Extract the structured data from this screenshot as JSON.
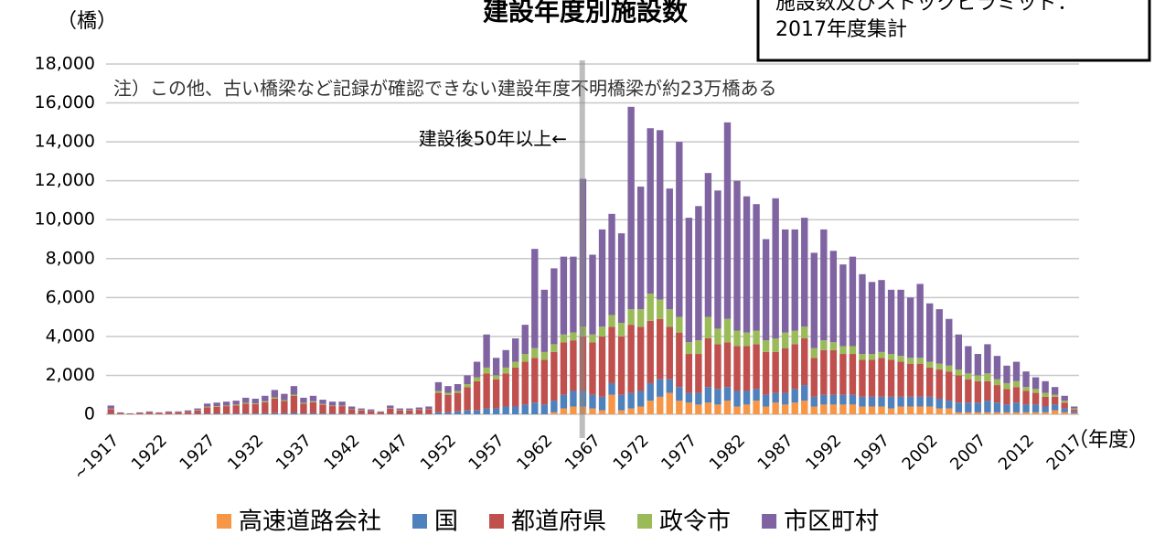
{
  "chart_data": {
    "type": "stacked_bar",
    "title": "建設年度別施設数",
    "box_text": [
      "施設数及びストックピラミッド：",
      "2017年度集計"
    ],
    "y_label": "（橋）",
    "x_label": "（年度）",
    "annotations": [
      "注）この他、古い橋梁など記録が確認できない建設年度不明橋梁が約23万橋ある",
      "建設後50年以上←"
    ],
    "categories": [
      "~1917",
      null,
      null,
      null,
      null,
      "1922",
      null,
      null,
      null,
      null,
      "1927",
      null,
      null,
      null,
      null,
      "1932",
      null,
      null,
      null,
      null,
      "1937",
      null,
      null,
      null,
      null,
      "1942",
      null,
      null,
      null,
      null,
      "1947",
      null,
      null,
      null,
      null,
      "1952",
      null,
      null,
      null,
      null,
      "1957",
      null,
      null,
      null,
      null,
      "1962",
      null,
      null,
      null,
      null,
      "1967",
      null,
      null,
      null,
      null,
      "1972",
      null,
      null,
      null,
      null,
      "1977",
      null,
      null,
      null,
      null,
      "1982",
      null,
      null,
      null,
      null,
      "1987",
      null,
      null,
      null,
      null,
      "1992",
      null,
      null,
      null,
      null,
      "1997",
      null,
      null,
      null,
      null,
      "2002",
      null,
      null,
      null,
      null,
      "2007",
      null,
      null,
      null,
      null,
      "2012",
      null,
      null,
      null,
      null,
      "2017"
    ],
    "series": [
      {
        "name": "高速道路会社",
        "color": "#f79646",
        "values": [
          0,
          0,
          0,
          0,
          0,
          0,
          0,
          0,
          0,
          0,
          0,
          0,
          0,
          0,
          0,
          0,
          0,
          0,
          0,
          0,
          0,
          0,
          0,
          0,
          0,
          0,
          0,
          0,
          0,
          0,
          0,
          0,
          0,
          0,
          0,
          0,
          0,
          0,
          0,
          0,
          0,
          0,
          0,
          0,
          0,
          0,
          100,
          300,
          400,
          400,
          300,
          200,
          1000,
          200,
          300,
          400,
          700,
          900,
          1100,
          700,
          600,
          500,
          600,
          500,
          700,
          400,
          500,
          700,
          400,
          600,
          500,
          600,
          700,
          400,
          500,
          500,
          500,
          500,
          400,
          400,
          400,
          300,
          400,
          400,
          400,
          400,
          300,
          300,
          100,
          100,
          100,
          100,
          100,
          100,
          100,
          100,
          100,
          100,
          200,
          100,
          50
        ]
      },
      {
        "name": "国",
        "color": "#4f81bd",
        "values": [
          20,
          5,
          0,
          5,
          10,
          5,
          10,
          10,
          10,
          20,
          30,
          30,
          30,
          40,
          40,
          40,
          50,
          60,
          50,
          70,
          40,
          50,
          40,
          30,
          30,
          20,
          20,
          10,
          10,
          20,
          20,
          20,
          20,
          20,
          100,
          100,
          150,
          200,
          200,
          300,
          300,
          400,
          400,
          500,
          600,
          500,
          600,
          700,
          800,
          800,
          700,
          700,
          600,
          800,
          800,
          800,
          900,
          900,
          700,
          700,
          500,
          600,
          800,
          800,
          700,
          800,
          700,
          600,
          600,
          500,
          600,
          700,
          800,
          500,
          500,
          500,
          500,
          500,
          500,
          500,
          500,
          600,
          500,
          500,
          500,
          500,
          500,
          400,
          500,
          500,
          500,
          600,
          500,
          400,
          500,
          400,
          400,
          300,
          300,
          200,
          100
        ]
      },
      {
        "name": "都道府県",
        "color": "#c0504d",
        "values": [
          250,
          60,
          30,
          60,
          90,
          60,
          90,
          90,
          120,
          180,
          330,
          360,
          390,
          420,
          510,
          480,
          570,
          750,
          630,
          870,
          510,
          570,
          450,
          390,
          390,
          240,
          180,
          150,
          90,
          270,
          180,
          180,
          210,
          240,
          1000,
          900,
          950,
          1200,
          1500,
          1800,
          1500,
          1700,
          2000,
          2200,
          2300,
          2300,
          2500,
          2700,
          2600,
          2800,
          2700,
          3100,
          2900,
          3000,
          3500,
          3300,
          3200,
          3100,
          2700,
          2800,
          2000,
          2000,
          2500,
          2300,
          2300,
          2300,
          2300,
          2300,
          2200,
          2100,
          2300,
          2300,
          2400,
          2000,
          2300,
          2300,
          2100,
          2100,
          1900,
          1900,
          2000,
          1900,
          1800,
          1700,
          1700,
          1500,
          1500,
          1500,
          1400,
          1200,
          1100,
          1000,
          900,
          800,
          800,
          700,
          600,
          500,
          400,
          300,
          100
        ]
      },
      {
        "name": "政令市",
        "color": "#9bbb59",
        "values": [
          20,
          5,
          0,
          5,
          10,
          5,
          10,
          10,
          10,
          20,
          30,
          30,
          30,
          40,
          40,
          40,
          50,
          60,
          50,
          70,
          40,
          50,
          40,
          30,
          30,
          20,
          20,
          10,
          10,
          20,
          20,
          20,
          20,
          20,
          100,
          100,
          100,
          150,
          200,
          300,
          200,
          300,
          300,
          400,
          500,
          400,
          400,
          400,
          400,
          500,
          400,
          500,
          600,
          700,
          800,
          900,
          1400,
          1000,
          900,
          800,
          600,
          700,
          1100,
          800,
          1200,
          800,
          700,
          700,
          600,
          700,
          800,
          700,
          600,
          500,
          500,
          400,
          400,
          400,
          300,
          300,
          300,
          300,
          300,
          300,
          300,
          300,
          300,
          300,
          300,
          300,
          300,
          400,
          300,
          300,
          300,
          200,
          200,
          200,
          100,
          100,
          50
        ]
      },
      {
        "name": "市区町村",
        "color": "#8064a2",
        "values": [
          160,
          30,
          20,
          30,
          40,
          30,
          40,
          40,
          60,
          80,
          160,
          180,
          200,
          200,
          260,
          240,
          280,
          380,
          320,
          440,
          260,
          280,
          220,
          200,
          200,
          120,
          80,
          80,
          40,
          140,
          80,
          80,
          100,
          120,
          450,
          350,
          350,
          450,
          800,
          1700,
          900,
          900,
          1200,
          1500,
          5100,
          3200,
          3900,
          4000,
          3900,
          7600,
          4100,
          5000,
          5200,
          4600,
          10400,
          6300,
          8500,
          8700,
          6200,
          9000,
          6400,
          6900,
          7400,
          7100,
          10100,
          7700,
          7000,
          6500,
          5200,
          7200,
          5300,
          5200,
          5600,
          4900,
          5700,
          4700,
          4200,
          4600,
          4100,
          3700,
          3700,
          3300,
          3400,
          3100,
          3800,
          3000,
          2800,
          2400,
          1800,
          1400,
          1100,
          1500,
          1200,
          900,
          1000,
          800,
          600,
          600,
          400,
          250,
          100
        ]
      }
    ],
    "ylim": [
      0,
      18000
    ],
    "yticks": [
      0,
      {
        "value": 2000,
        "label": "2,000"
      },
      {
        "value": 4000,
        "label": "4,000"
      },
      {
        "value": 6000,
        "label": "6,000"
      },
      {
        "value": 8000,
        "label": "8,000"
      },
      {
        "value": 10000,
        "label": "10,000"
      },
      {
        "value": 12000,
        "label": "12,000"
      },
      {
        "value": 14000,
        "label": "14,000"
      },
      {
        "value": 16000,
        "label": "16,000"
      },
      {
        "value": 18000,
        "label": "18,000"
      }
    ],
    "grid": true
  }
}
